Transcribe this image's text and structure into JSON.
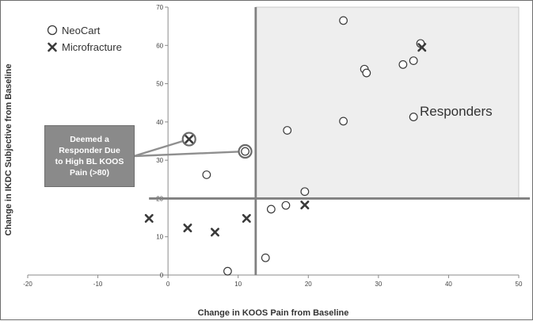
{
  "chart_data": {
    "type": "scatter",
    "xlabel": "Change in KOOS Pain from Baseline",
    "ylabel": "Change in IKDC Subjective from Baseline",
    "xlim": [
      -20,
      50
    ],
    "ylim": [
      0,
      70
    ],
    "x_ticks": [
      -20,
      -10,
      0,
      10,
      20,
      30,
      40,
      50
    ],
    "y_ticks": [
      0,
      10,
      20,
      30,
      40,
      50,
      60,
      70
    ],
    "threshold_x": 12.5,
    "threshold_y": 20,
    "region_label": "Responders",
    "legend_position": "top-left",
    "colors": {
      "marker": "#3a3a3a",
      "region_fill": "#eeeeee",
      "threshold_line": "#808080",
      "callout_fill": "#8a8a8a"
    },
    "series": [
      {
        "name": "NeoCart",
        "marker": "circle",
        "points": [
          [
            25,
            66.5
          ],
          [
            36,
            60.5
          ],
          [
            28,
            53.8
          ],
          [
            28.3,
            52.8
          ],
          [
            33.5,
            55
          ],
          [
            35,
            56
          ],
          [
            35,
            41.3
          ],
          [
            25,
            40.2
          ],
          [
            17,
            37.8
          ],
          [
            11,
            32.3
          ],
          [
            5.5,
            26.2
          ],
          [
            19.5,
            21.8
          ],
          [
            16.8,
            18.2
          ],
          [
            14.7,
            17.2
          ],
          [
            13.9,
            4.5
          ],
          [
            8.5,
            1
          ]
        ]
      },
      {
        "name": "Microfracture",
        "marker": "x",
        "points": [
          [
            36.2,
            59.5
          ],
          [
            3,
            35.5
          ],
          [
            -2.7,
            14.8
          ],
          [
            2.8,
            12.3
          ],
          [
            6.7,
            11.2
          ],
          [
            11.2,
            14.8
          ],
          [
            19.5,
            18.3
          ]
        ]
      }
    ],
    "highlighted_points": [
      [
        3,
        35.5
      ],
      [
        11,
        32.3
      ]
    ],
    "callout": {
      "lines": [
        "Deemed a",
        "Responder Due",
        "to High BL KOOS",
        "Pain (>80)"
      ]
    }
  }
}
